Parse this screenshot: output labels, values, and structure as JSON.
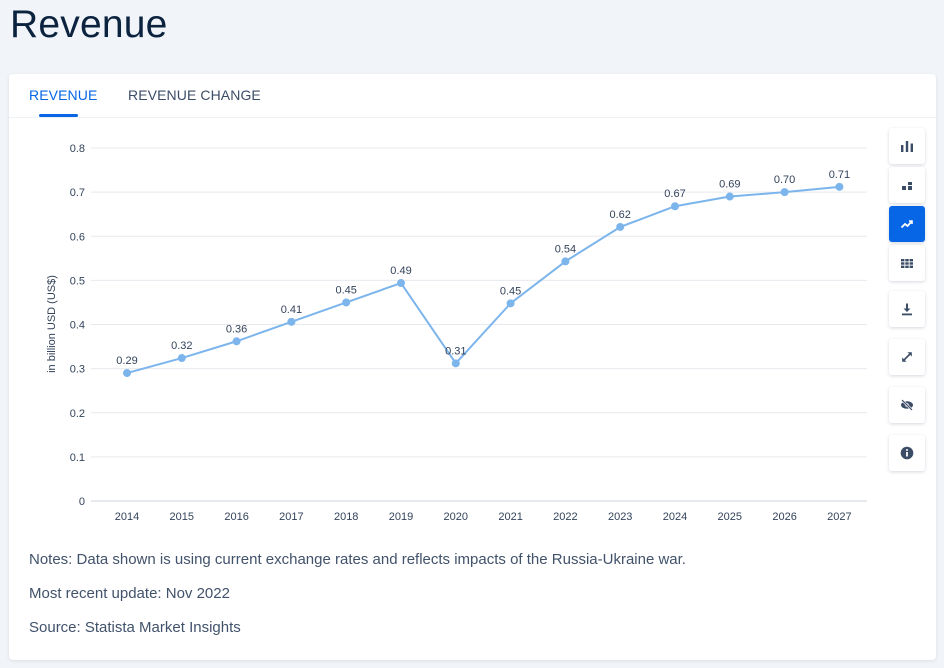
{
  "page": {
    "title": "Revenue"
  },
  "tabs": [
    {
      "label": "REVENUE",
      "active": true
    },
    {
      "label": "REVENUE CHANGE",
      "active": false
    }
  ],
  "toolbar": {
    "buttons": [
      {
        "icon": "bar-chart-icon",
        "active": false
      },
      {
        "icon": "stacked-bar-icon",
        "active": false
      },
      {
        "icon": "line-chart-icon",
        "active": true
      },
      {
        "icon": "table-icon",
        "active": false
      },
      {
        "icon": "download-icon",
        "active": false
      },
      {
        "icon": "fullscreen-icon",
        "active": false
      },
      {
        "icon": "hide-icon",
        "active": false
      },
      {
        "icon": "info-icon",
        "active": false
      }
    ]
  },
  "chart_data": {
    "type": "line",
    "title": "",
    "xlabel": "",
    "ylabel": "in billion USD (US$)",
    "ylim": [
      0,
      0.8
    ],
    "yticks": [
      "0",
      "0.1",
      "0.2",
      "0.3",
      "0.4",
      "0.5",
      "0.6",
      "0.7",
      "0.8"
    ],
    "grid": true,
    "categories": [
      "2014",
      "2015",
      "2016",
      "2017",
      "2018",
      "2019",
      "2020",
      "2021",
      "2022",
      "2023",
      "2024",
      "2025",
      "2026",
      "2027"
    ],
    "series": [
      {
        "values": [
          0.29,
          0.324,
          0.362,
          0.406,
          0.45,
          0.494,
          0.312,
          0.448,
          0.543,
          0.621,
          0.668,
          0.69,
          0.7,
          0.712
        ],
        "labels": [
          "0.29",
          "0.32",
          "0.36",
          "0.41",
          "0.45",
          "0.49",
          "0.31",
          "0.45",
          "0.54",
          "0.62",
          "0.67",
          "0.69",
          "0.70",
          "0.71"
        ],
        "color": "#7cb5ec"
      }
    ]
  },
  "notes": {
    "note": "Notes: Data shown is using current exchange rates and reflects impacts of the Russia-Ukraine war.",
    "update": "Most recent update: Nov 2022",
    "source": "Source: Statista Market Insights"
  },
  "colors": {
    "accent": "#0666e5",
    "line": "#7cb5ec",
    "grid": "#e6e9ee"
  }
}
